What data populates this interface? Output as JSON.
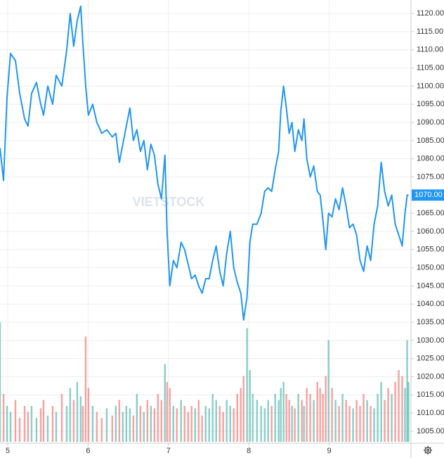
{
  "chart_data": {
    "type": "line",
    "watermark": "VIETSTOCK",
    "xlim": [
      4.904,
      10.0
    ],
    "xticks": [
      5,
      6,
      7,
      8,
      9
    ],
    "ylim": [
      1001.7,
      1123.7
    ],
    "yticks": [
      {
        "value": 1005,
        "label": "1005.00"
      },
      {
        "value": 1010,
        "label": "1010.00"
      },
      {
        "value": 1015,
        "label": "1015.00"
      },
      {
        "value": 1020,
        "label": "1020.00"
      },
      {
        "value": 1025,
        "label": "1025.00"
      },
      {
        "value": 1030,
        "label": "1030.00"
      },
      {
        "value": 1035,
        "label": "1035.00"
      },
      {
        "value": 1040,
        "label": "1040.00"
      },
      {
        "value": 1045,
        "label": "1045.00"
      },
      {
        "value": 1050,
        "label": "1050.00"
      },
      {
        "value": 1055,
        "label": "1055.00"
      },
      {
        "value": 1060,
        "label": "1060.00"
      },
      {
        "value": 1065,
        "label": "1065.00"
      },
      {
        "value": 1075,
        "label": "1075.00"
      },
      {
        "value": 1080,
        "label": "1080.00"
      },
      {
        "value": 1085,
        "label": "1085.00"
      },
      {
        "value": 1090,
        "label": "1090.00"
      },
      {
        "value": 1095,
        "label": "1095.00"
      },
      {
        "value": 1100,
        "label": "1100.00"
      },
      {
        "value": 1105,
        "label": "1105.00"
      },
      {
        "value": 1110,
        "label": "1110.00"
      },
      {
        "value": 1115,
        "label": "1115.00"
      },
      {
        "value": 1120,
        "label": "1120.00"
      }
    ],
    "grid": true,
    "last_price": {
      "value": 1070,
      "label": "1070.00"
    },
    "color": "#2196f3",
    "up_color": "#26a69a",
    "down_color": "#ef5350",
    "y2lim": [
      0,
      100
    ],
    "x": [
      4.904,
      4.948,
      4.991,
      5.035,
      5.096,
      5.149,
      5.21,
      5.253,
      5.297,
      5.358,
      5.411,
      5.446,
      5.498,
      5.559,
      5.603,
      5.673,
      5.734,
      5.777,
      5.821,
      5.865,
      5.908,
      5.935,
      5.97,
      6.004,
      6.057,
      6.109,
      6.17,
      6.232,
      6.301,
      6.345,
      6.389,
      6.432,
      6.476,
      6.52,
      6.563,
      6.607,
      6.651,
      6.694,
      6.738,
      6.782,
      6.825,
      6.869,
      6.913,
      6.956,
      6.983,
      7.017,
      7.061,
      7.105,
      7.157,
      7.201,
      7.245,
      7.288,
      7.332,
      7.376,
      7.419,
      7.463,
      7.507,
      7.55,
      7.594,
      7.638,
      7.681,
      7.725,
      7.769,
      7.812,
      7.856,
      7.9,
      7.935,
      7.978,
      8.013,
      8.048,
      8.101,
      8.153,
      8.197,
      8.24,
      8.284,
      8.328,
      8.371,
      8.398,
      8.432,
      8.467,
      8.502,
      8.537,
      8.572,
      8.616,
      8.66,
      8.686,
      8.721,
      8.764,
      8.808,
      8.852,
      8.887,
      8.922,
      8.957,
      8.992,
      9.035,
      9.079,
      9.122,
      9.166,
      9.21,
      9.253,
      9.297,
      9.341,
      9.384,
      9.428,
      9.472,
      9.516,
      9.559,
      9.603,
      9.647,
      9.69,
      9.734,
      9.778,
      9.821,
      9.865,
      9.908,
      9.943,
      9.97,
      9.987
    ],
    "values": [
      1083,
      1074,
      1097,
      1109,
      1107,
      1098,
      1091,
      1089,
      1098,
      1101,
      1095,
      1092,
      1100,
      1095,
      1103,
      1100,
      1110,
      1120,
      1111,
      1118,
      1122,
      1112,
      1100,
      1092,
      1095,
      1090,
      1087,
      1088,
      1086,
      1087,
      1079,
      1084,
      1089,
      1094,
      1085,
      1088,
      1082,
      1085,
      1077,
      1084,
      1081,
      1073,
      1069,
      1081,
      1060,
      1045,
      1052,
      1050,
      1057,
      1055,
      1051,
      1047,
      1048,
      1045,
      1043,
      1047,
      1047,
      1052,
      1056,
      1049,
      1045,
      1054,
      1060,
      1050,
      1046,
      1043,
      1035.6,
      1042,
      1057,
      1062,
      1062,
      1065,
      1071,
      1072,
      1071,
      1077,
      1082,
      1093,
      1100,
      1094,
      1087,
      1090,
      1082,
      1088,
      1085,
      1091,
      1080,
      1075,
      1078,
      1071,
      1070,
      1063,
      1055,
      1065,
      1064,
      1069,
      1066,
      1072,
      1067,
      1061,
      1062,
      1059,
      1052,
      1049,
      1056,
      1052,
      1062,
      1067,
      1079,
      1071,
      1067,
      1070,
      1062,
      1059,
      1056,
      1065,
      1070,
      1070
    ],
    "volume": [
      100,
      40,
      30,
      25,
      35,
      20,
      30,
      25,
      30,
      20,
      28,
      35,
      22,
      30,
      25,
      40,
      30,
      45,
      35,
      50,
      38,
      30,
      88,
      45,
      30,
      25,
      20,
      28,
      22,
      30,
      35,
      25,
      30,
      28,
      22,
      40,
      30,
      25,
      35,
      30,
      28,
      40,
      35,
      65,
      50,
      45,
      30,
      28,
      35,
      30,
      25,
      30,
      28,
      35,
      22,
      30,
      28,
      40,
      35,
      30,
      25,
      35,
      30,
      28,
      40,
      45,
      55,
      95,
      60,
      40,
      35,
      30,
      28,
      35,
      30,
      40,
      35,
      45,
      50,
      40,
      35,
      30,
      28,
      40,
      35,
      30,
      45,
      40,
      35,
      50,
      45,
      40,
      55,
      85,
      45,
      35,
      30,
      40,
      35,
      30,
      28,
      35,
      30,
      40,
      35,
      30,
      28,
      40,
      50,
      35,
      45,
      40,
      50,
      60,
      55,
      45,
      85,
      50
    ]
  }
}
